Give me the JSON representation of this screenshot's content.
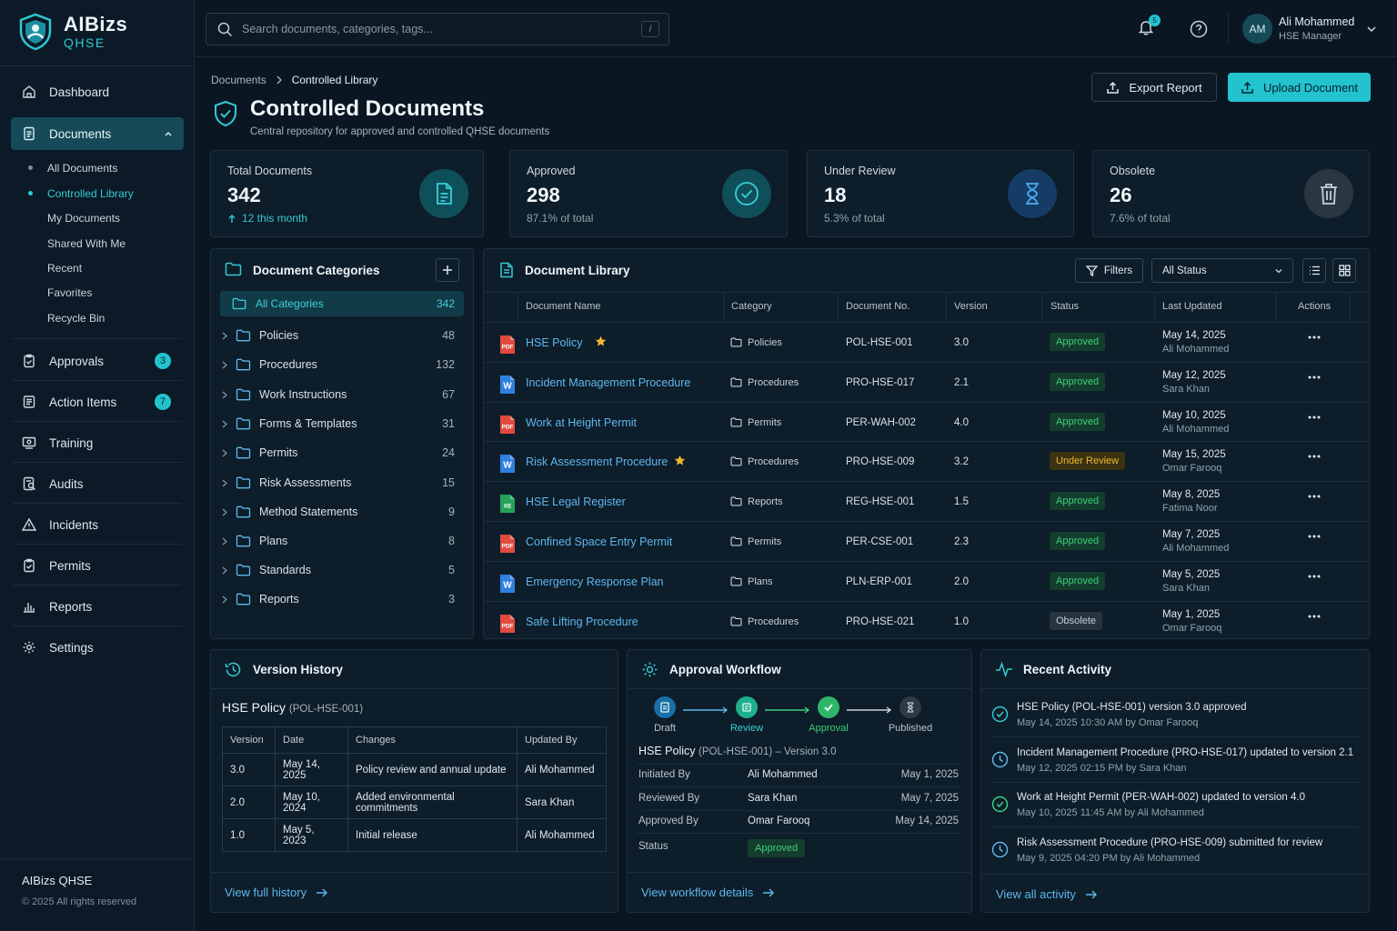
{
  "app": {
    "brand": "AIBizs",
    "product": "QHSE"
  },
  "colors": {
    "accent": "#22c3cf",
    "approved": "#3ccf7a",
    "under_review": "#f2b632",
    "link": "#5fb7ee",
    "background": "#0a1722"
  },
  "sidebar": {
    "items": [
      {
        "label": "Dashboard",
        "icon": "home-icon"
      },
      {
        "label": "Documents",
        "icon": "document-icon"
      },
      {
        "label": "Approvals",
        "icon": "clipboard-check-icon",
        "badge": "3"
      },
      {
        "label": "Action Items",
        "icon": "list-icon",
        "badge": "7"
      },
      {
        "label": "Training",
        "icon": "training-icon"
      },
      {
        "label": "Audits",
        "icon": "audit-icon"
      },
      {
        "label": "Incidents",
        "icon": "warning-icon"
      },
      {
        "label": "Permits",
        "icon": "permit-icon"
      },
      {
        "label": "Reports",
        "icon": "bar-chart-icon"
      },
      {
        "label": "Settings",
        "icon": "gear-icon"
      }
    ],
    "documents_sub": [
      "All Documents",
      "Controlled Library",
      "My Documents",
      "Shared With Me",
      "Recent",
      "Favorites",
      "Recycle Bin"
    ],
    "footer": {
      "title": "AIBizs QHSE",
      "copyright": "© 2025 All rights reserved"
    }
  },
  "topbar": {
    "search_placeholder": "Search documents, categories, tags...",
    "search_shortcut": "/",
    "notifications": "5",
    "user": {
      "initials": "AM",
      "name": "Ali Mohammed",
      "role": "HSE Manager"
    }
  },
  "header": {
    "breadcrumb": [
      "Documents",
      "Controlled Library"
    ],
    "title": "Controlled Documents",
    "subtitle": "Central repository for approved and controlled QHSE documents",
    "export_label": "Export Report",
    "upload_label": "Upload Document"
  },
  "stats": [
    {
      "label": "Total Documents",
      "value": "342",
      "sub": "12 this month"
    },
    {
      "label": "Approved",
      "value": "298",
      "sub": "87.1% of total"
    },
    {
      "label": "Under Review",
      "value": "18",
      "sub": "5.3% of total"
    },
    {
      "label": "Obsolete",
      "value": "26",
      "sub": "7.6% of total"
    }
  ],
  "categories": {
    "title": "Document Categories",
    "all": {
      "name": "All Categories",
      "count": "342"
    },
    "items": [
      {
        "name": "Policies",
        "count": "48"
      },
      {
        "name": "Procedures",
        "count": "132"
      },
      {
        "name": "Work Instructions",
        "count": "67"
      },
      {
        "name": "Forms & Templates",
        "count": "31"
      },
      {
        "name": "Permits",
        "count": "24"
      },
      {
        "name": "Risk Assessments",
        "count": "15"
      },
      {
        "name": "Method Statements",
        "count": "9"
      },
      {
        "name": "Plans",
        "count": "8"
      },
      {
        "name": "Standards",
        "count": "5"
      },
      {
        "name": "Reports",
        "count": "3"
      }
    ]
  },
  "library": {
    "title": "Document Library",
    "filters_label": "Filters",
    "status_filter": "All Status",
    "columns": [
      "Document Name",
      "Category",
      "Document No.",
      "Version",
      "Status",
      "Last Updated",
      "Actions"
    ],
    "rows": [
      {
        "type": "PDF",
        "name": "HSE Policy",
        "starred": true,
        "category": "Policies",
        "no": "POL-HSE-001",
        "version": "3.0",
        "status": "Approved",
        "date": "May 14, 2025",
        "by": "Ali Mohammed"
      },
      {
        "type": "W",
        "name": "Incident Management Procedure",
        "starred": false,
        "category": "Procedures",
        "no": "PRO-HSE-017",
        "version": "2.1",
        "status": "Approved",
        "date": "May 12, 2025",
        "by": "Sara Khan"
      },
      {
        "type": "PDF",
        "name": "Work at Height Permit",
        "starred": false,
        "category": "Permits",
        "no": "PER-WAH-002",
        "version": "4.0",
        "status": "Approved",
        "date": "May 10, 2025",
        "by": "Ali Mohammed"
      },
      {
        "type": "W",
        "name": "Risk Assessment Procedure",
        "starred": true,
        "category": "Procedures",
        "no": "PRO-HSE-009",
        "version": "3.2",
        "status": "Under Review",
        "date": "May 15, 2025",
        "by": "Omar Farooq"
      },
      {
        "type": "XE",
        "name": "HSE Legal Register",
        "starred": false,
        "category": "Reports",
        "no": "REG-HSE-001",
        "version": "1.5",
        "status": "Approved",
        "date": "May 8, 2025",
        "by": "Fatima Noor"
      },
      {
        "type": "PDF",
        "name": "Confined Space Entry Permit",
        "starred": false,
        "category": "Permits",
        "no": "PER-CSE-001",
        "version": "2.3",
        "status": "Approved",
        "date": "May 7, 2025",
        "by": "Ali Mohammed"
      },
      {
        "type": "W",
        "name": "Emergency Response Plan",
        "starred": false,
        "category": "Plans",
        "no": "PLN-ERP-001",
        "version": "2.0",
        "status": "Approved",
        "date": "May 5, 2025",
        "by": "Sara Khan"
      },
      {
        "type": "PDF",
        "name": "Safe Lifting Procedure",
        "starred": false,
        "category": "Procedures",
        "no": "PRO-HSE-021",
        "version": "1.0",
        "status": "Obsolete",
        "date": "May 1, 2025",
        "by": "Omar Farooq"
      }
    ]
  },
  "version_history": {
    "title": "Version History",
    "doc_name": "HSE Policy",
    "doc_no": "(POL-HSE-001)",
    "columns": [
      "Version",
      "Date",
      "Changes",
      "Updated By"
    ],
    "rows": [
      [
        "3.0",
        "May 14, 2025",
        "Policy review and annual update",
        "Ali Mohammed"
      ],
      [
        "2.0",
        "May 10, 2024",
        "Added environmental commitments",
        "Sara Khan"
      ],
      [
        "1.0",
        "May 5, 2023",
        "Initial release",
        "Ali Mohammed"
      ]
    ],
    "link": "View full history"
  },
  "workflow": {
    "title": "Approval Workflow",
    "steps": [
      "Draft",
      "Review",
      "Approval",
      "Published"
    ],
    "doc_name": "HSE Policy",
    "doc_meta": "(POL-HSE-001) – Version 3.0",
    "rows": [
      {
        "k": "Initiated By",
        "v": "Ali Mohammed",
        "d": "May 1, 2025"
      },
      {
        "k": "Reviewed By",
        "v": "Sara Khan",
        "d": "May 7, 2025"
      },
      {
        "k": "Approved By",
        "v": "Omar Farooq",
        "d": "May 14, 2025"
      }
    ],
    "status_label": "Status",
    "status_value": "Approved",
    "link": "View workflow details"
  },
  "activity": {
    "title": "Recent Activity",
    "items": [
      {
        "text": "HSE Policy (POL-HSE-001) version 3.0 approved",
        "meta": "May 14, 2025 10:30 AM by Omar Farooq"
      },
      {
        "text": "Incident Management Procedure (PRO-HSE-017) updated to version 2.1",
        "meta": "May 12, 2025 02:15 PM by Sara Khan"
      },
      {
        "text": "Work at Height Permit (PER-WAH-002) updated to version 4.0",
        "meta": "May 10, 2025 11:45 AM by Ali Mohammed"
      },
      {
        "text": "Risk Assessment Procedure (PRO-HSE-009) submitted for review",
        "meta": "May 9, 2025 04:20 PM by Ali Mohammed"
      }
    ],
    "link": "View all activity"
  }
}
